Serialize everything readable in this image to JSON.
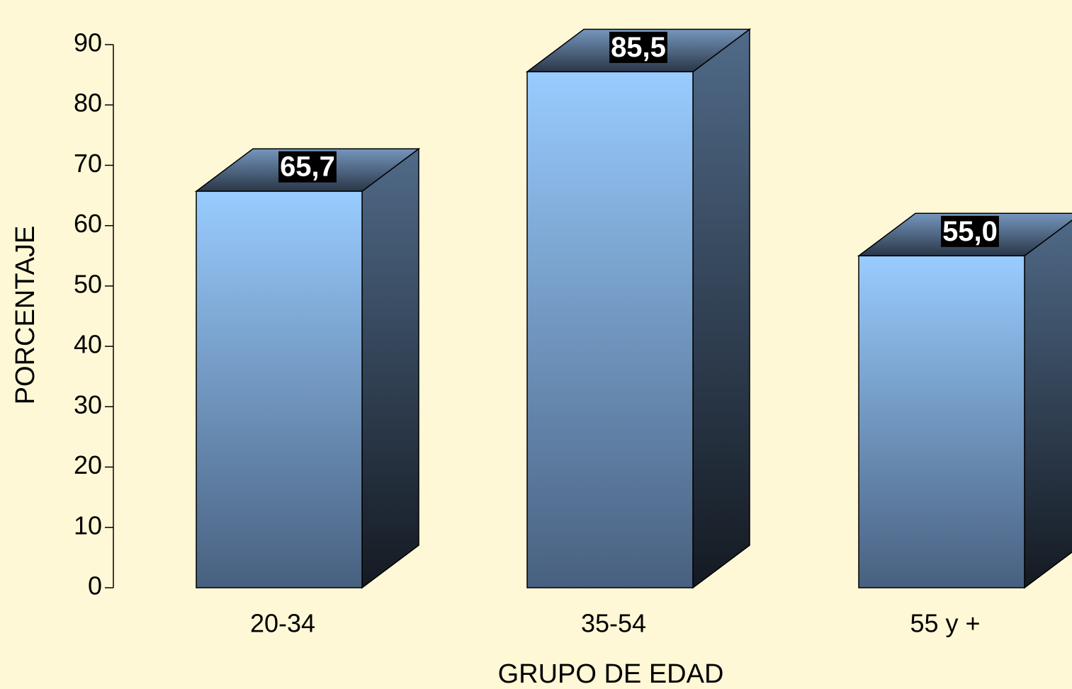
{
  "chart_data": {
    "type": "bar3d",
    "categories": [
      "20-34",
      "35-54",
      "55 y +"
    ],
    "values": [
      65.7,
      85.5,
      55.0
    ],
    "value_labels": [
      "65,7",
      "85,5",
      "55,0"
    ],
    "xlabel": "GRUPO DE EDAD",
    "ylabel": "PORCENTAJE",
    "ylim": [
      0,
      90
    ],
    "yticks": [
      0,
      10,
      20,
      30,
      40,
      50,
      60,
      70,
      80,
      90
    ],
    "color": "#99ccff"
  }
}
